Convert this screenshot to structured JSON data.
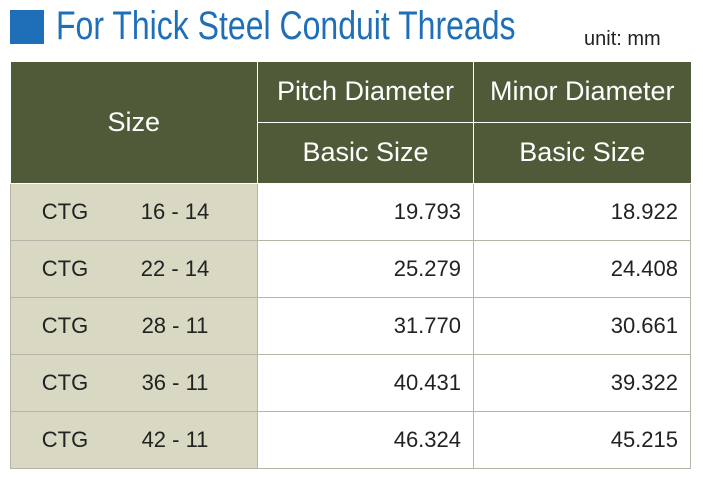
{
  "header": {
    "title": "For Thick Steel Conduit Threads",
    "unit": "unit: mm"
  },
  "table": {
    "columns": [
      "Size",
      "Pitch Diameter",
      "Minor Diameter"
    ],
    "subcolumns": [
      "Basic Size",
      "Basic Size"
    ],
    "rows": [
      [
        "CTG",
        "16 - 14",
        "19.793",
        "18.922"
      ],
      [
        "CTG",
        "22 - 14",
        "25.279",
        "24.408"
      ],
      [
        "CTG",
        "28 - 11",
        "31.770",
        "30.661"
      ],
      [
        "CTG",
        "36 - 11",
        "40.431",
        "39.322"
      ],
      [
        "CTG",
        "42 - 11",
        "46.324",
        "45.215"
      ]
    ]
  }
}
